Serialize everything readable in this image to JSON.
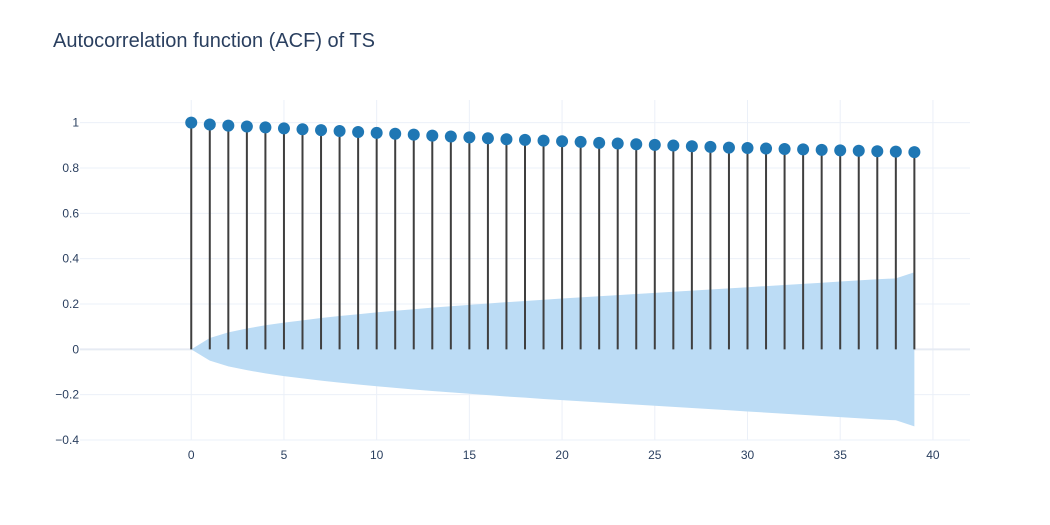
{
  "chart_data": {
    "type": "scatter",
    "title": "Autocorrelation function (ACF) of TS",
    "xlabel": "",
    "ylabel": "",
    "xlim": [
      -6,
      42
    ],
    "ylim": [
      -0.4,
      1.1
    ],
    "grid": true,
    "x_ticks": [
      0,
      5,
      10,
      15,
      20,
      25,
      30,
      35,
      40
    ],
    "x_tick_labels": [
      "0",
      "5",
      "10",
      "15",
      "20",
      "25",
      "30",
      "35",
      "40"
    ],
    "y_ticks": [
      -0.4,
      -0.2,
      0,
      0.2,
      0.4,
      0.6,
      0.8,
      1
    ],
    "y_tick_labels": [
      "−0.4",
      "−0.2",
      "0",
      "0.2",
      "0.4",
      "0.6",
      "0.8",
      "1"
    ],
    "lags": [
      0,
      1,
      2,
      3,
      4,
      5,
      6,
      7,
      8,
      9,
      10,
      11,
      12,
      13,
      14,
      15,
      16,
      17,
      18,
      19,
      20,
      21,
      22,
      23,
      24,
      25,
      26,
      27,
      28,
      29,
      30,
      31,
      32,
      33,
      34,
      35,
      36,
      37,
      38,
      39
    ],
    "acf": [
      1.0,
      0.992,
      0.987,
      0.983,
      0.979,
      0.975,
      0.971,
      0.967,
      0.963,
      0.959,
      0.955,
      0.951,
      0.947,
      0.943,
      0.939,
      0.935,
      0.931,
      0.927,
      0.924,
      0.921,
      0.918,
      0.915,
      0.911,
      0.908,
      0.905,
      0.902,
      0.899,
      0.896,
      0.893,
      0.89,
      0.888,
      0.886,
      0.884,
      0.882,
      0.88,
      0.878,
      0.876,
      0.874,
      0.872,
      0.87
    ],
    "confidence_upper": [
      0,
      0.05,
      0.075,
      0.092,
      0.106,
      0.118,
      0.128,
      0.138,
      0.147,
      0.155,
      0.163,
      0.17,
      0.177,
      0.184,
      0.19,
      0.196,
      0.202,
      0.208,
      0.213,
      0.219,
      0.224,
      0.229,
      0.234,
      0.239,
      0.244,
      0.249,
      0.254,
      0.259,
      0.264,
      0.269,
      0.274,
      0.279,
      0.284,
      0.289,
      0.294,
      0.299,
      0.304,
      0.309,
      0.313,
      0.34
    ],
    "confidence_lower": [
      0,
      -0.05,
      -0.075,
      -0.092,
      -0.106,
      -0.118,
      -0.128,
      -0.138,
      -0.147,
      -0.155,
      -0.163,
      -0.17,
      -0.177,
      -0.184,
      -0.19,
      -0.196,
      -0.202,
      -0.208,
      -0.213,
      -0.219,
      -0.224,
      -0.229,
      -0.234,
      -0.239,
      -0.244,
      -0.249,
      -0.254,
      -0.259,
      -0.264,
      -0.269,
      -0.274,
      -0.279,
      -0.284,
      -0.289,
      -0.294,
      -0.299,
      -0.304,
      -0.309,
      -0.313,
      -0.34
    ],
    "colors": {
      "marker": "#1f77b4",
      "stem": "#3f3f3f",
      "band": "#bcdcf5",
      "grid": "#ebf0f8",
      "zeroline": "#e6ebf3",
      "text": "#2a3f5f"
    }
  }
}
